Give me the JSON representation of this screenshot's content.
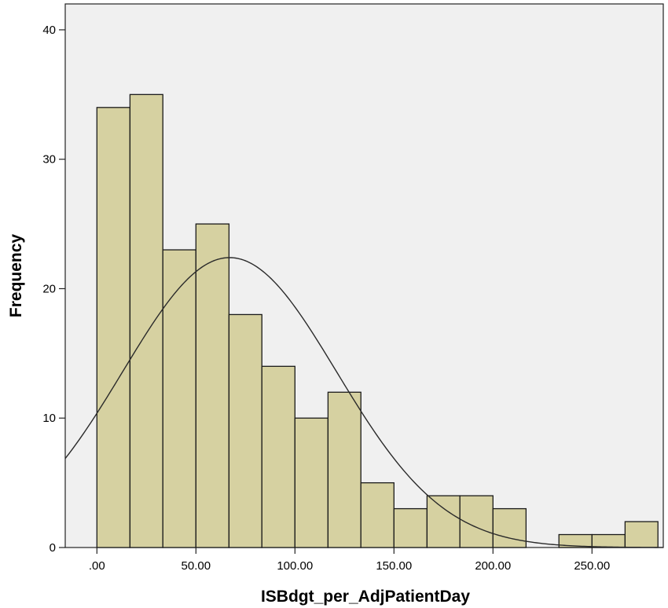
{
  "chart_data": {
    "type": "bar",
    "subtype": "histogram-with-normal-curve",
    "xlabel": "ISBdgt_per_AdjPatientDay",
    "ylabel": "Frequency",
    "xlim": [
      -16,
      286
    ],
    "ylim": [
      0,
      42
    ],
    "xticks": [
      0,
      50,
      100,
      150,
      200,
      250
    ],
    "xtick_labels": [
      ".00",
      "50.00",
      "100.00",
      "150.00",
      "200.00",
      "250.00"
    ],
    "yticks": [
      0,
      10,
      20,
      30,
      40
    ],
    "ytick_labels": [
      "0",
      "10",
      "20",
      "30",
      "40"
    ],
    "bins": [
      {
        "start": 0,
        "end": 16.7,
        "count": 34
      },
      {
        "start": 16.7,
        "end": 33.3,
        "count": 35
      },
      {
        "start": 33.3,
        "end": 50.0,
        "count": 23
      },
      {
        "start": 50.0,
        "end": 66.7,
        "count": 25
      },
      {
        "start": 66.7,
        "end": 83.3,
        "count": 18
      },
      {
        "start": 83.3,
        "end": 100.0,
        "count": 14
      },
      {
        "start": 100.0,
        "end": 116.7,
        "count": 10
      },
      {
        "start": 116.7,
        "end": 133.3,
        "count": 12
      },
      {
        "start": 133.3,
        "end": 150.0,
        "count": 5
      },
      {
        "start": 150.0,
        "end": 166.7,
        "count": 3
      },
      {
        "start": 166.7,
        "end": 183.3,
        "count": 4
      },
      {
        "start": 183.3,
        "end": 200.0,
        "count": 4
      },
      {
        "start": 200.0,
        "end": 216.7,
        "count": 3
      },
      {
        "start": 233.3,
        "end": 250.0,
        "count": 1
      },
      {
        "start": 250.0,
        "end": 266.7,
        "count": 1
      },
      {
        "start": 266.7,
        "end": 283.3,
        "count": 2
      }
    ],
    "normal_curve": {
      "mean": 67,
      "sd": 54,
      "peak": 22.4
    },
    "grid": false,
    "legend": "none",
    "colors": {
      "bar_fill": "#d6d1a1",
      "bar_stroke": "#1a1a1a",
      "plot_background": "#f0f0f0",
      "curve": "#2a2a2a"
    }
  }
}
